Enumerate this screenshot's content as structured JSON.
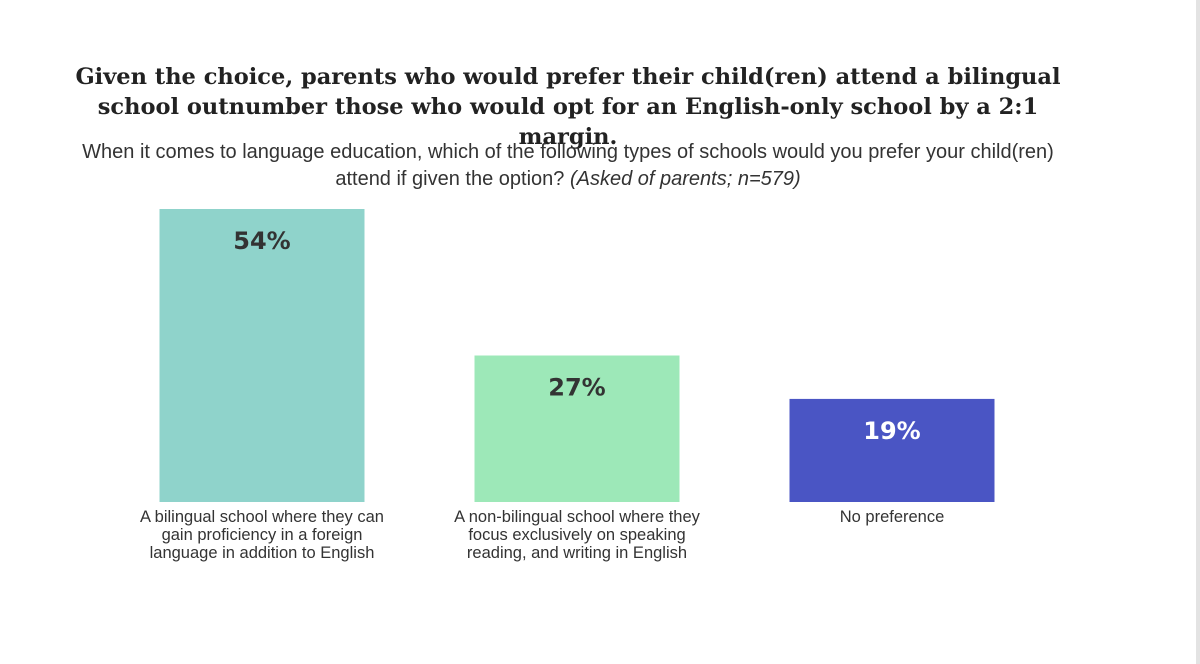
{
  "title": "Given the choice, parents who would prefer their child(ren) attend a bilingual school outnumber those who would opt for an English-only school by a 2:1 margin.",
  "subtitle": {
    "question": "When it comes to language education, which of the following types of schools would you prefer your child(ren) attend if given the option?",
    "note": "(Asked of parents; n=579)"
  },
  "chart_data": {
    "type": "bar",
    "title": "Given the choice, parents who would prefer their child(ren) attend a bilingual school outnumber those who would opt for an English-only school by a 2:1 margin.",
    "categories": [
      "A bilingual school where they can gain proficiency in a foreign language in addition to English",
      "A non-bilingual school where they focus exclusively on speaking reading, and writing in English",
      "No preference"
    ],
    "category_lines": [
      [
        "A bilingual school where they can",
        "gain proficiency in a foreign",
        "language in addition to English"
      ],
      [
        "A non-bilingual school where they",
        "focus exclusively on speaking",
        "reading, and writing in English"
      ],
      [
        "No preference"
      ]
    ],
    "values": [
      54,
      27,
      19
    ],
    "value_labels": [
      "54%",
      "27%",
      "19%"
    ],
    "unit": "%",
    "colors": [
      "#8fd3cb",
      "#9de8b8",
      "#4a55c4"
    ],
    "label_colors": [
      "#333333",
      "#333333",
      "#ffffff"
    ],
    "ylim": [
      0,
      54
    ],
    "grid": false,
    "legend": "none",
    "axes_visible": false
  }
}
